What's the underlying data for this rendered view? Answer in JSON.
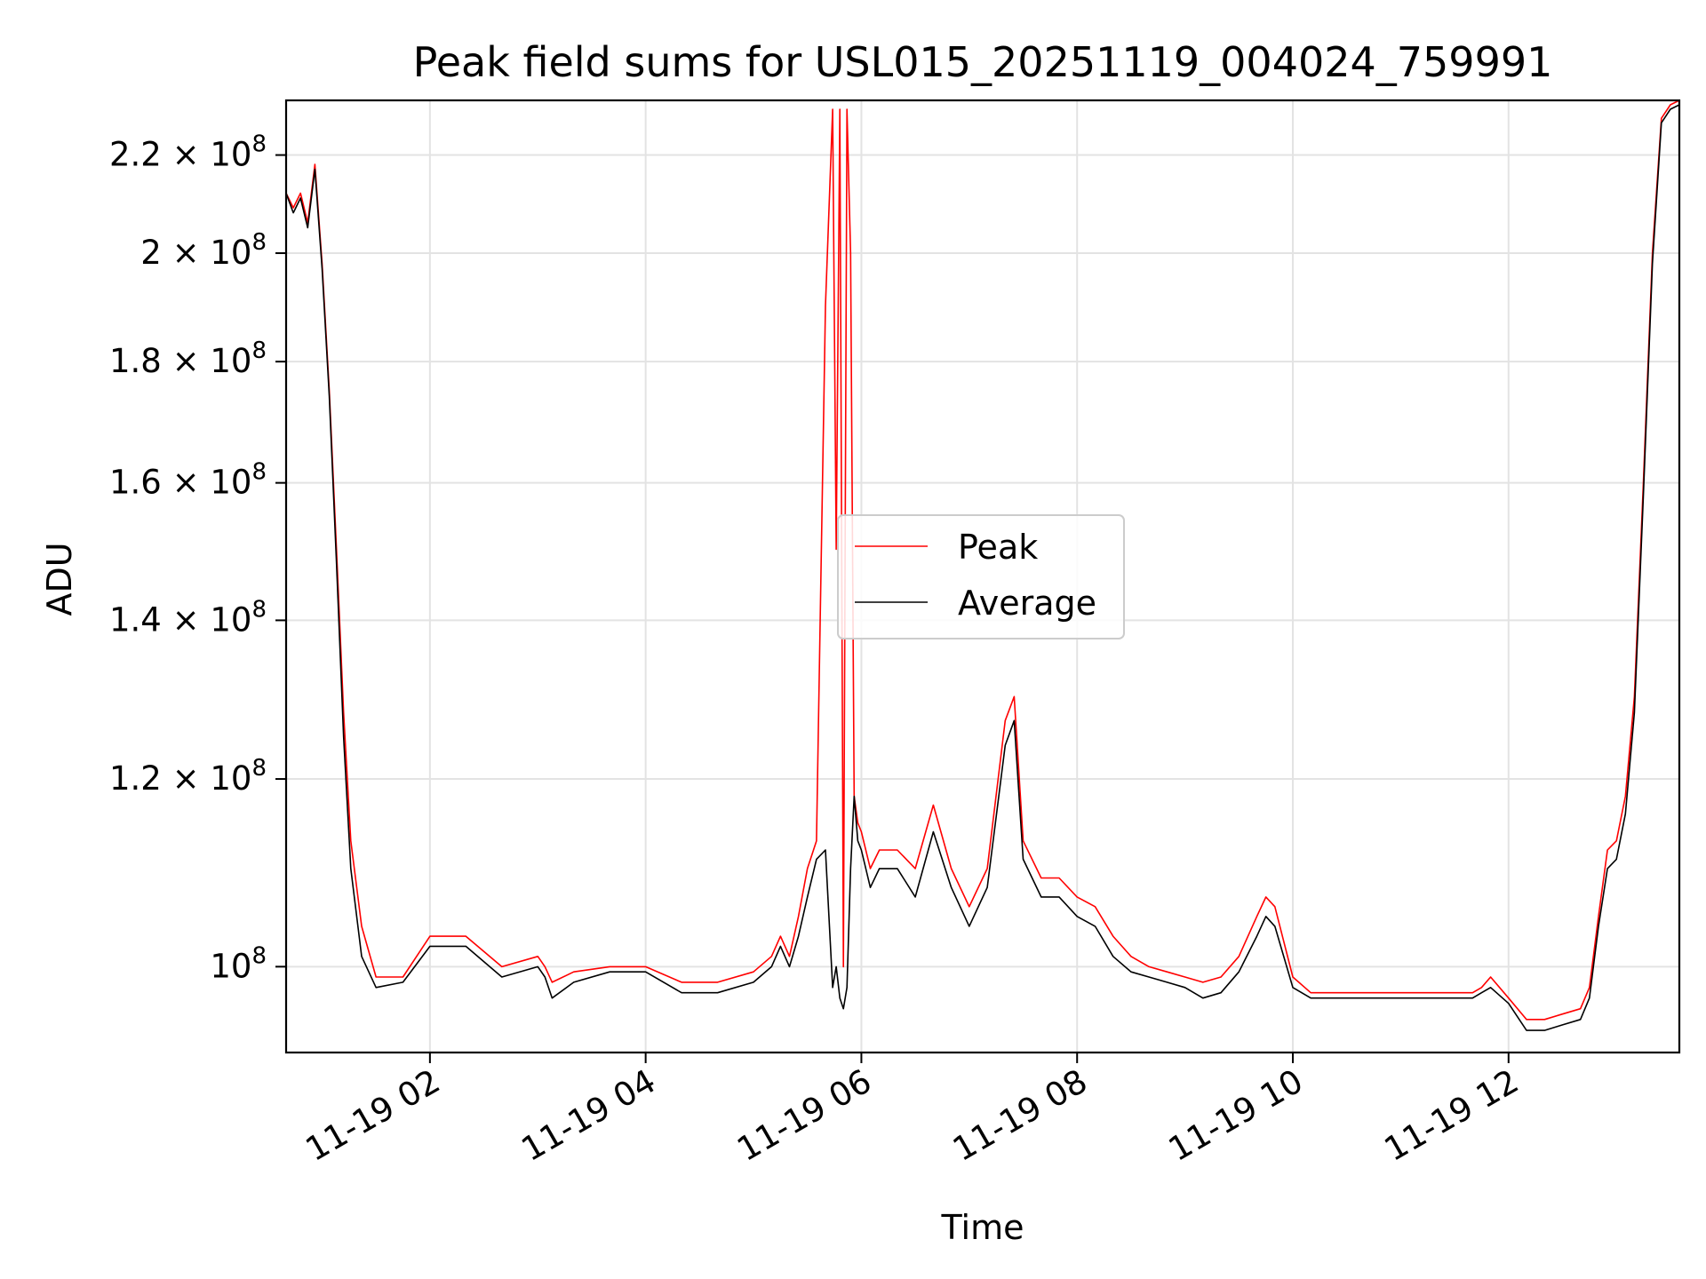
{
  "chart_data": {
    "type": "line",
    "title": "Peak field sums for USL015_20251119_004024_759991",
    "xlabel": "Time",
    "ylabel": "ADU",
    "y_scale": "log",
    "grid": true,
    "legend_placement": "center",
    "xlim": [
      "2025-11-19 00:40",
      "2025-11-19 13:35"
    ],
    "ylim": [
      92000000,
      232000000
    ],
    "x_ticks": [
      "11-19 02",
      "11-19 04",
      "11-19 06",
      "11-19 08",
      "11-19 10",
      "11-19 12"
    ],
    "y_ticks": [
      {
        "value": 100000000,
        "mantissa": "",
        "exp": "8"
      },
      {
        "value": 120000000,
        "mantissa": "1.2",
        "exp": "8"
      },
      {
        "value": 140000000,
        "mantissa": "1.4",
        "exp": "8"
      },
      {
        "value": 160000000,
        "mantissa": "1.6",
        "exp": "8"
      },
      {
        "value": 180000000,
        "mantissa": "1.8",
        "exp": "8"
      },
      {
        "value": 200000000,
        "mantissa": "2",
        "exp": "8"
      },
      {
        "value": 220000000,
        "mantissa": "2.2",
        "exp": "8"
      }
    ],
    "series": [
      {
        "name": "Peak",
        "color": "#ff0000",
        "x": [
          "00:40",
          "00:44",
          "00:48",
          "00:52",
          "00:56",
          "01:00",
          "01:04",
          "01:08",
          "01:12",
          "01:16",
          "01:22",
          "01:30",
          "01:45",
          "02:00",
          "02:20",
          "02:40",
          "03:00",
          "03:04",
          "03:08",
          "03:20",
          "03:40",
          "04:00",
          "04:20",
          "04:40",
          "05:00",
          "05:10",
          "05:15",
          "05:20",
          "05:25",
          "05:30",
          "05:35",
          "05:40",
          "05:44",
          "05:46",
          "05:48",
          "05:50",
          "05:52",
          "05:54",
          "05:56",
          "05:58",
          "06:00",
          "06:05",
          "06:10",
          "06:20",
          "06:30",
          "06:40",
          "06:50",
          "07:00",
          "07:10",
          "07:20",
          "07:25",
          "07:30",
          "07:40",
          "07:50",
          "08:00",
          "08:10",
          "08:20",
          "08:30",
          "08:40",
          "08:50",
          "09:00",
          "09:10",
          "09:20",
          "09:30",
          "09:40",
          "09:45",
          "09:50",
          "10:00",
          "10:10",
          "10:20",
          "10:40",
          "11:00",
          "11:20",
          "11:40",
          "11:45",
          "11:50",
          "12:00",
          "12:10",
          "12:20",
          "12:30",
          "12:40",
          "12:45",
          "12:50",
          "12:55",
          "13:00",
          "13:05",
          "13:10",
          "13:15",
          "13:20",
          "13:25",
          "13:30",
          "13:35"
        ],
        "values": [
          212000000,
          209000000,
          212000000,
          206000000,
          218000000,
          198000000,
          175000000,
          150000000,
          128000000,
          113000000,
          104000000,
          99000000,
          99000000,
          103000000,
          103000000,
          100000000,
          101000000,
          100000000,
          98500000,
          99500000,
          100000000,
          100000000,
          98500000,
          98500000,
          99500000,
          101000000,
          103000000,
          101000000,
          105000000,
          110000000,
          113000000,
          190000000,
          230000000,
          150000000,
          230000000,
          100000000,
          230000000,
          200000000,
          118000000,
          115000000,
          114000000,
          110000000,
          112000000,
          112000000,
          110000000,
          117000000,
          110000000,
          106000000,
          110000000,
          127000000,
          130000000,
          113000000,
          109000000,
          109000000,
          107000000,
          106000000,
          103000000,
          101000000,
          100000000,
          99500000,
          99000000,
          98500000,
          99000000,
          101000000,
          105000000,
          107000000,
          106000000,
          99000000,
          97500000,
          97500000,
          97500000,
          97500000,
          97500000,
          97500000,
          98000000,
          99000000,
          97000000,
          95000000,
          95000000,
          95500000,
          96000000,
          98000000,
          105000000,
          112000000,
          113000000,
          118000000,
          130000000,
          160000000,
          200000000,
          228000000,
          231000000,
          232000000
        ]
      },
      {
        "name": "Average",
        "color": "#000000",
        "x": [
          "00:40",
          "00:44",
          "00:48",
          "00:52",
          "00:56",
          "01:00",
          "01:04",
          "01:08",
          "01:12",
          "01:16",
          "01:22",
          "01:30",
          "01:45",
          "02:00",
          "02:20",
          "02:40",
          "03:00",
          "03:04",
          "03:08",
          "03:20",
          "03:40",
          "04:00",
          "04:20",
          "04:40",
          "05:00",
          "05:10",
          "05:15",
          "05:20",
          "05:25",
          "05:30",
          "05:35",
          "05:40",
          "05:44",
          "05:46",
          "05:48",
          "05:50",
          "05:52",
          "05:54",
          "05:56",
          "05:58",
          "06:00",
          "06:05",
          "06:10",
          "06:20",
          "06:30",
          "06:40",
          "06:50",
          "07:00",
          "07:10",
          "07:20",
          "07:25",
          "07:30",
          "07:40",
          "07:50",
          "08:00",
          "08:10",
          "08:20",
          "08:30",
          "08:40",
          "08:50",
          "09:00",
          "09:10",
          "09:20",
          "09:30",
          "09:40",
          "09:45",
          "09:50",
          "10:00",
          "10:10",
          "10:20",
          "10:40",
          "11:00",
          "11:20",
          "11:40",
          "11:45",
          "11:50",
          "12:00",
          "12:10",
          "12:20",
          "12:30",
          "12:40",
          "12:45",
          "12:50",
          "12:55",
          "13:00",
          "13:05",
          "13:10",
          "13:15",
          "13:20",
          "13:25",
          "13:30",
          "13:35"
        ],
        "values": [
          212000000,
          208000000,
          211000000,
          205000000,
          217000000,
          197000000,
          174000000,
          148000000,
          125000000,
          110000000,
          101000000,
          98000000,
          98500000,
          102000000,
          102000000,
          99000000,
          100000000,
          99000000,
          97000000,
          98500000,
          99500000,
          99500000,
          97500000,
          97500000,
          98500000,
          100000000,
          102000000,
          100000000,
          103000000,
          107000000,
          111000000,
          112000000,
          98000000,
          100000000,
          97000000,
          96000000,
          98000000,
          110000000,
          118000000,
          113000000,
          112000000,
          108000000,
          110000000,
          110000000,
          107000000,
          114000000,
          108000000,
          104000000,
          108000000,
          124000000,
          127000000,
          111000000,
          107000000,
          107000000,
          105000000,
          104000000,
          101000000,
          99500000,
          99000000,
          98500000,
          98000000,
          97000000,
          97500000,
          99500000,
          103000000,
          105000000,
          104000000,
          98000000,
          97000000,
          97000000,
          97000000,
          97000000,
          97000000,
          97000000,
          97500000,
          98000000,
          96500000,
          94000000,
          94000000,
          94500000,
          95000000,
          97000000,
          104000000,
          110000000,
          111000000,
          116000000,
          128000000,
          158000000,
          198000000,
          227000000,
          230000000,
          231000000
        ]
      }
    ]
  }
}
